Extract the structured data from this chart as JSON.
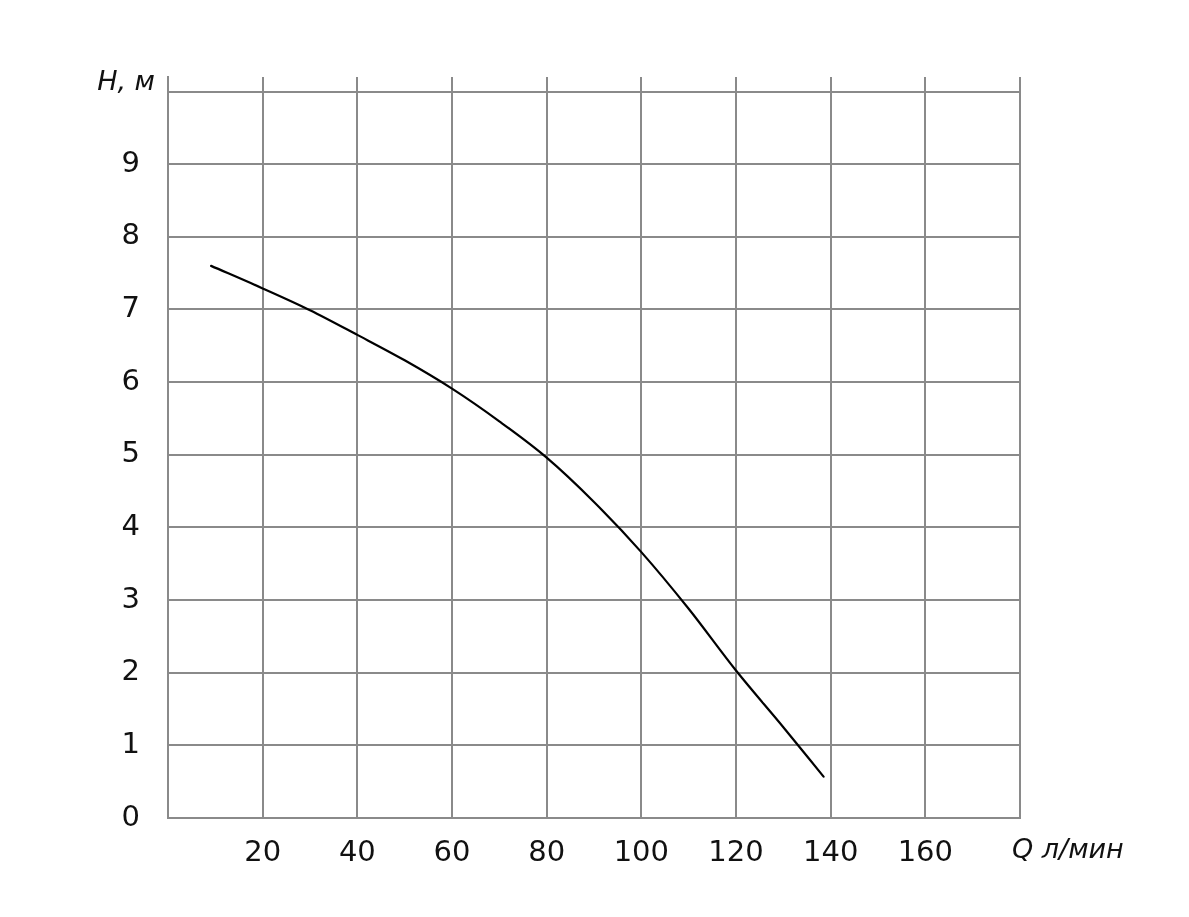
{
  "chart_data": {
    "type": "line",
    "xlabel": "Q л/мин",
    "ylabel": "H, м",
    "x": [
      9.1,
      20,
      30,
      40,
      50,
      60,
      70,
      80,
      90,
      100,
      110,
      120,
      130,
      138.5
    ],
    "values": [
      7.6,
      7.29,
      6.99,
      6.65,
      6.3,
      5.91,
      5.46,
      4.96,
      4.35,
      3.66,
      2.88,
      2.03,
      1.25,
      0.57
    ],
    "color": "#000000",
    "xlim": [
      0,
      180
    ],
    "xticks": [
      {
        "value": 0,
        "label": null
      },
      20,
      40,
      60,
      80,
      100,
      120,
      140,
      160,
      {
        "value": 180,
        "label": null
      }
    ],
    "ylim": [
      0,
      10.2
    ],
    "yticks": [
      0,
      1,
      2,
      3,
      4,
      5,
      6,
      7,
      8,
      9,
      {
        "value": 10,
        "label": null
      }
    ],
    "grid": true
  }
}
